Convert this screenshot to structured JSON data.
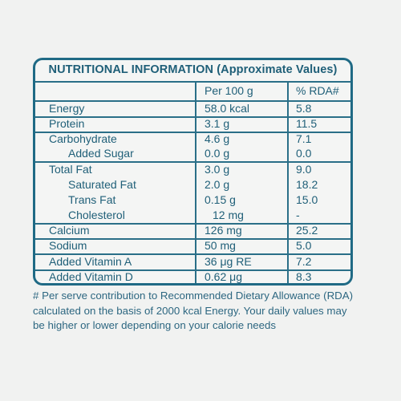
{
  "title": "NUTRITIONAL INFORMATION (Approximate Values)",
  "columns": {
    "per100": "Per 100 g",
    "rda": "% RDA#"
  },
  "rows": [
    {
      "name": "Energy",
      "value": "58.0 kcal",
      "rda": "5.8"
    },
    {
      "name": "Protein",
      "value": "3.1 g",
      "rda": "11.5"
    },
    {
      "name": "Carbohydrate",
      "value": "4.6 g",
      "rda": "7.1"
    },
    {
      "name": "Added Sugar",
      "value": "0.0 g",
      "rda": "0.0"
    },
    {
      "name": "Total Fat",
      "value": "3.0 g",
      "rda": "9.0"
    },
    {
      "name": "Saturated Fat",
      "value": "2.0 g",
      "rda": "18.2"
    },
    {
      "name": "Trans Fat",
      "value": "0.15 g",
      "rda": "15.0"
    },
    {
      "name": "Cholesterol",
      "value": "12 mg",
      "rda": "-"
    },
    {
      "name": "Calcium",
      "value": "126 mg",
      "rda": "25.2"
    },
    {
      "name": "Sodium",
      "value": "50 mg",
      "rda": "5.0"
    },
    {
      "name": "Added Vitamin A",
      "value": "36 μg RE",
      "rda": "7.2"
    },
    {
      "name": "Added Vitamin D",
      "value": "0.62 μg",
      "rda": "8.3"
    }
  ],
  "footnote": [
    "# Per serve contribution to Recommended Dietary Allowance (RDA)",
    "calculated on the basis of 2000 kcal Energy. Your daily values may",
    "be higher or lower depending on your calorie needs"
  ]
}
